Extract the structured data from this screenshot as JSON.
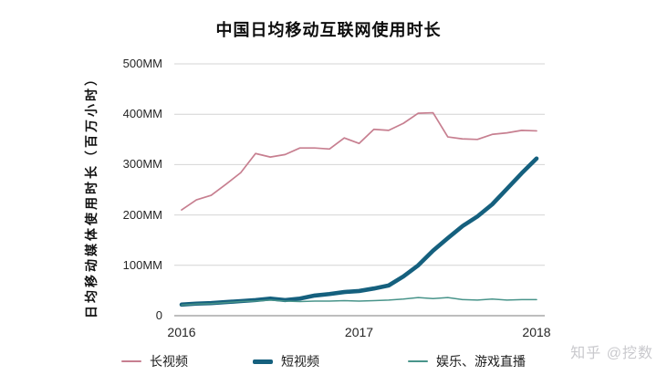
{
  "watermark": {
    "text": "知乎 @挖数"
  },
  "colors": {
    "grid": "#d4d4d4",
    "axis_line": "#a8a8a8",
    "long_video": "#c77f90",
    "short_video": "#15607e",
    "live_streaming": "#48948a"
  },
  "chart_data": {
    "type": "line",
    "title": "中国日均移动互联网使用时长",
    "ylabel": "日均移动媒体使用时长（百万小时）",
    "xlabel": "",
    "ylim": [
      0,
      500
    ],
    "grid": "horizontal",
    "legend_position": "bottom",
    "ytick_values": [
      500,
      400,
      300,
      200,
      100,
      0
    ],
    "ytick_labels": [
      "500MM",
      "400MM",
      "300MM",
      "200MM",
      "100MM",
      "0"
    ],
    "x_tick_labels": [
      "2016",
      "2017",
      "2018"
    ],
    "x_tick_indices": [
      0,
      12,
      24
    ],
    "x": [
      "2016-01",
      "2016-02",
      "2016-03",
      "2016-04",
      "2016-05",
      "2016-06",
      "2016-07",
      "2016-08",
      "2016-09",
      "2016-10",
      "2016-11",
      "2016-12",
      "2017-01",
      "2017-02",
      "2017-03",
      "2017-04",
      "2017-05",
      "2017-06",
      "2017-07",
      "2017-08",
      "2017-09",
      "2017-10",
      "2017-11",
      "2017-12",
      "2018-01"
    ],
    "series": [
      {
        "name": "长视频",
        "color": "#c77f90",
        "width": 1.7,
        "values": [
          210,
          230,
          239,
          261,
          284,
          322,
          315,
          320,
          333,
          333,
          331,
          353,
          342,
          370,
          368,
          382,
          402,
          403,
          355,
          351,
          350,
          360,
          363,
          368,
          367
        ]
      },
      {
        "name": "短视频",
        "color": "#15607e",
        "width": 4.6,
        "values": [
          22,
          24,
          25,
          27,
          29,
          31,
          34,
          31,
          34,
          40,
          43,
          47,
          49,
          54,
          60,
          78,
          100,
          129,
          154,
          178,
          197,
          221,
          252,
          283,
          312
        ]
      },
      {
        "name": "娱乐、游戏直播",
        "color": "#48948a",
        "width": 1.5,
        "values": [
          21,
          23,
          24,
          26,
          28,
          29,
          31,
          29,
          28,
          29,
          29,
          30,
          29,
          30,
          31,
          33,
          36,
          34,
          36,
          32,
          31,
          33,
          31,
          32,
          32
        ]
      }
    ]
  }
}
